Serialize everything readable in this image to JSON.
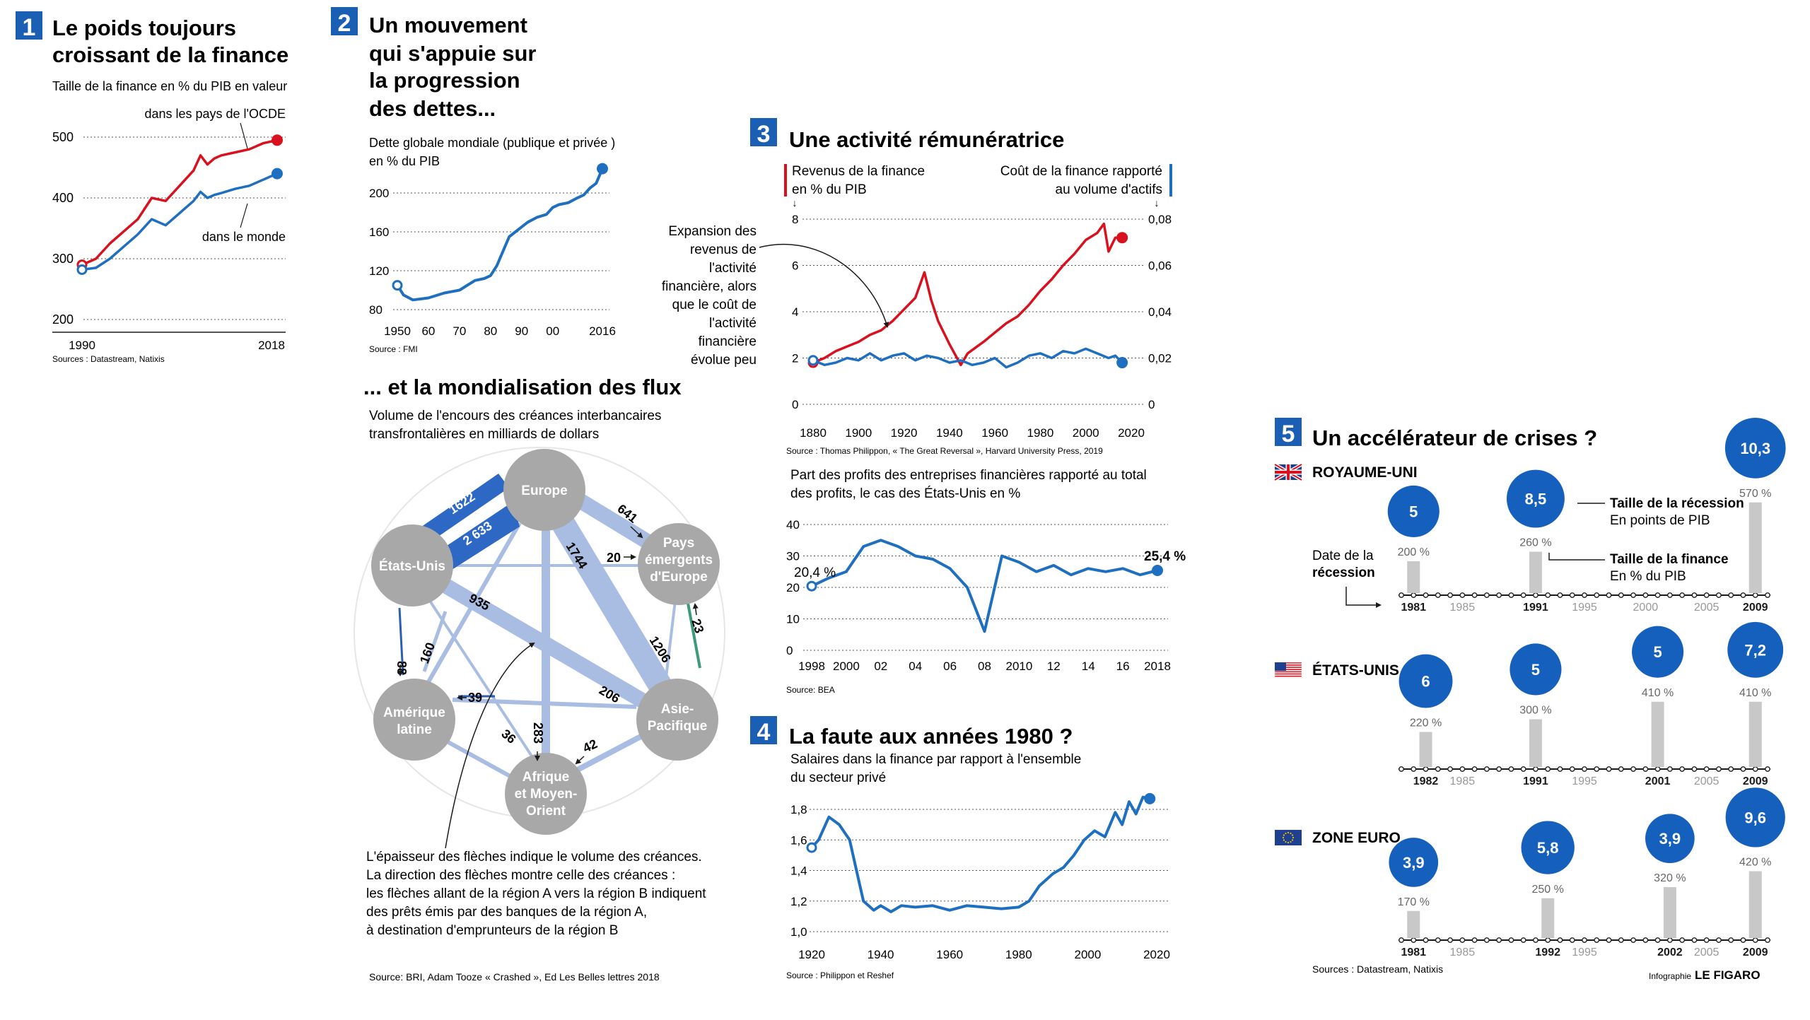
{
  "colors": {
    "blue": "#1f6fc0",
    "red": "#d9111e",
    "badge": "#1560bd",
    "panel_number_bg": "#1a5fb4",
    "network_node": "#a8a8a8",
    "network_edge": "#a9bde3",
    "network_edge_dark": "#2d68c4",
    "green": "#3a9a7a",
    "bar": "#c8c8c8",
    "grid": "#555555"
  },
  "panel1": {
    "number": "1",
    "title_line1": "Le poids toujours",
    "title_line2": "croissant de la finance",
    "subtitle": "Taille de la finance en % du PIB  en valeur",
    "label_ocde": "dans les pays de l'OCDE",
    "label_monde": "dans le monde",
    "source": "Sources : Datastream, Natixis"
  },
  "panel2": {
    "number": "2",
    "title_line1": "Un mouvement",
    "title_line2": "qui s'appuie sur",
    "title_line3": "la progression",
    "title_line4": "des dettes...",
    "subtitle_line1": "Dette globale mondiale (publique et privée )",
    "subtitle_line2": "en % du PIB",
    "source": "Source : FMI"
  },
  "network": {
    "title": "... et la mondialisation des flux",
    "subtitle_line1": "Volume de l'encours des créances interbancaires",
    "subtitle_line2": "transfrontalières en milliards de dollars",
    "nodes": {
      "europe": "Europe",
      "etats_unis": "États-Unis",
      "pays_emergents_1": "Pays",
      "pays_emergents_2": "émergents",
      "pays_emergents_3": "d'Europe",
      "amerique_1": "Amérique",
      "amerique_2": "latine",
      "asie_1": "Asie-",
      "asie_2": "Pacifique",
      "afrique_1": "Afrique",
      "afrique_2": "et Moyen-",
      "afrique_3": "Orient"
    },
    "flows": {
      "f1622": "1622",
      "f2633": "2 633",
      "f641": "641",
      "f20": "20",
      "f1744": "1744",
      "f935": "935",
      "f1206": "1206",
      "f23": "23",
      "f88": "88",
      "f160": "160",
      "f39": "39",
      "f206": "206",
      "f283": "283",
      "f36": "36",
      "f42": "42"
    },
    "note_line1": "L'épaisseur des flèches indique le volume des créances.",
    "note_line2": "La direction des flèches montre celle des créances :",
    "note_line3": "les flèches allant de la région A vers la région B indiquent",
    "note_line4": "des prêts émis par des banques de la région A,",
    "note_line5": "à destination d'emprunteurs de la région B",
    "source": "Source: BRI, Adam Tooze « Crashed », Ed Les Belles lettres 2018"
  },
  "panel3": {
    "number": "3",
    "title": "Une activité rémunératrice",
    "left_axis_line1": "Revenus de la finance",
    "left_axis_line2": "en % du PIB",
    "right_axis_line1": "Coût de la finance rapporté",
    "right_axis_line2": "au volume d'actifs",
    "annotation": [
      "Expansion des",
      "revenus de",
      "l'activité",
      "financière, alors",
      "que le coût de",
      "l'activité",
      "financière",
      "évolue peu"
    ],
    "source": "Source : Thomas Philippon, « The Great Reversal », Harvard University Press, 2019",
    "profits_title_line1": "Part des profits des entreprises financières rapporté au total",
    "profits_title_line2": "des profits, le cas des États-Unis en %",
    "profits_start_label": "20,4 %",
    "profits_end_label": "25,4 %",
    "profits_source": "Source: BEA"
  },
  "panel4": {
    "number": "4",
    "title": "La faute aux années 1980 ?",
    "subtitle_line1": "Salaires dans la finance par rapport à l'ensemble",
    "subtitle_line2": "du secteur privé",
    "source": "Source : Philippon et Reshef"
  },
  "panel5": {
    "number": "5",
    "title": "Un accélérateur de crises ?",
    "legend_badge": "Taille de la récession",
    "legend_badge_sub": "En points de PIB",
    "legend_bar": "Taille de la finance",
    "legend_bar_sub": "En % du PIB",
    "date_label_line1": "Date de la",
    "date_label_line2": "récession",
    "source": "Sources : Datastream, Natixis",
    "credit_small": "Infographie",
    "credit_brand": "LE FIGARO",
    "regions": [
      {
        "name": "ROYAUME-UNI",
        "flag": "uk-flag-icon",
        "ticks": [
          "1981",
          "1985",
          "1991",
          "1995",
          "2000",
          "2005",
          "2009"
        ],
        "crises": [
          {
            "year": "1981",
            "recession": "5",
            "finance": "200 %",
            "finance_pct": 200
          },
          {
            "year": "1991",
            "recession": "8,5",
            "finance": "260 %",
            "finance_pct": 260
          },
          {
            "year": "2009",
            "recession": "10,3",
            "finance": "570 %",
            "finance_pct": 570
          }
        ]
      },
      {
        "name": "ÉTATS-UNIS",
        "flag": "us-flag-icon",
        "ticks": [
          "1982",
          "1985",
          "1991",
          "1995",
          "2001",
          "2005",
          "2009"
        ],
        "crises": [
          {
            "year": "1982",
            "recession": "6",
            "finance": "220 %",
            "finance_pct": 220
          },
          {
            "year": "1991",
            "recession": "5",
            "finance": "300 %",
            "finance_pct": 300
          },
          {
            "year": "2001",
            "recession": "5",
            "finance": "410 %",
            "finance_pct": 410
          },
          {
            "year": "2009",
            "recession": "7,2",
            "finance": "410 %",
            "finance_pct": 410
          }
        ]
      },
      {
        "name": "ZONE EURO",
        "flag": "eu-flag-icon",
        "ticks": [
          "1981",
          "1985",
          "1992",
          "1995",
          "2002",
          "2005",
          "2009"
        ],
        "crises": [
          {
            "year": "1981",
            "recession": "3,9",
            "finance": "170 %",
            "finance_pct": 170
          },
          {
            "year": "1992",
            "recession": "5,8",
            "finance": "250 %",
            "finance_pct": 250
          },
          {
            "year": "2002",
            "recession": "3,9",
            "finance": "320 %",
            "finance_pct": 320
          },
          {
            "year": "2009",
            "recession": "9,6",
            "finance": "420 %",
            "finance_pct": 420
          }
        ]
      }
    ]
  },
  "chart_data": [
    {
      "id": "finance_size",
      "type": "line",
      "xlim": [
        1990,
        2018
      ],
      "ylim": [
        200,
        500
      ],
      "yticks": [
        200,
        300,
        400,
        500
      ],
      "xtick_labels": [
        "1990",
        "2018"
      ],
      "series": [
        {
          "name": "dans les pays de l'OCDE",
          "color_key": "red",
          "x": [
            1990,
            1992,
            1994,
            1996,
            1998,
            2000,
            2002,
            2004,
            2006,
            2007,
            2008,
            2009,
            2010,
            2012,
            2014,
            2016,
            2018
          ],
          "y": [
            290,
            300,
            325,
            345,
            365,
            400,
            395,
            420,
            445,
            470,
            455,
            465,
            470,
            475,
            480,
            490,
            495
          ]
        },
        {
          "name": "dans le monde",
          "color_key": "blue",
          "x": [
            1990,
            1992,
            1994,
            1996,
            1998,
            2000,
            2002,
            2004,
            2006,
            2007,
            2008,
            2009,
            2010,
            2012,
            2014,
            2016,
            2018
          ],
          "y": [
            282,
            285,
            300,
            320,
            340,
            365,
            355,
            375,
            395,
            410,
            400,
            405,
            408,
            415,
            420,
            430,
            440
          ]
        }
      ]
    },
    {
      "id": "global_debt",
      "type": "line",
      "xlim": [
        1950,
        2016
      ],
      "ylim": [
        80,
        200
      ],
      "yticks": [
        80,
        120,
        160,
        200
      ],
      "xtick_labels": [
        "1950",
        "60",
        "70",
        "80",
        "90",
        "00",
        "2016"
      ],
      "xtick_values": [
        1950,
        1960,
        1970,
        1980,
        1990,
        2000,
        2016
      ],
      "series": [
        {
          "name": "",
          "color_key": "blue",
          "x": [
            1950,
            1952,
            1955,
            1960,
            1965,
            1970,
            1975,
            1978,
            1980,
            1982,
            1984,
            1986,
            1988,
            1990,
            1992,
            1995,
            1998,
            2000,
            2002,
            2005,
            2008,
            2010,
            2012,
            2014,
            2016
          ],
          "y": [
            105,
            95,
            90,
            92,
            97,
            100,
            110,
            112,
            115,
            125,
            140,
            155,
            160,
            165,
            170,
            175,
            178,
            185,
            188,
            190,
            195,
            198,
            205,
            210,
            225
          ]
        }
      ]
    },
    {
      "id": "finance_income_cost",
      "type": "line",
      "xlim": [
        1880,
        2020
      ],
      "ylim": [
        0,
        8
      ],
      "yticks_left": [
        0,
        2,
        4,
        6,
        8
      ],
      "yticks_right": [
        "0",
        "0,02",
        "0,04",
        "0,06",
        "0,08"
      ],
      "xtick_values": [
        1880,
        1900,
        1920,
        1940,
        1960,
        1980,
        2000,
        2020
      ],
      "series": [
        {
          "name": "Revenus de la finance en % du PIB",
          "color_key": "red",
          "axis": "left",
          "x": [
            1880,
            1885,
            1890,
            1895,
            1900,
            1905,
            1910,
            1915,
            1920,
            1925,
            1929,
            1932,
            1935,
            1940,
            1945,
            1948,
            1955,
            1960,
            1965,
            1970,
            1975,
            1980,
            1985,
            1990,
            1995,
            2000,
            2005,
            2008,
            2010,
            2013,
            2016
          ],
          "y": [
            1.8,
            2.0,
            2.3,
            2.5,
            2.7,
            3.0,
            3.2,
            3.6,
            4.1,
            4.6,
            5.7,
            4.5,
            3.6,
            2.6,
            1.7,
            2.2,
            2.7,
            3.1,
            3.5,
            3.8,
            4.3,
            4.9,
            5.4,
            6.0,
            6.5,
            7.1,
            7.4,
            7.8,
            6.6,
            7.2,
            7.2
          ]
        },
        {
          "name": "Coût de la finance rapporté au volume d'actifs",
          "color_key": "blue",
          "axis": "right",
          "x": [
            1880,
            1885,
            1890,
            1895,
            1900,
            1905,
            1910,
            1915,
            1920,
            1925,
            1930,
            1935,
            1940,
            1945,
            1950,
            1955,
            1960,
            1965,
            1970,
            1975,
            1980,
            1985,
            1990,
            1995,
            2000,
            2005,
            2010,
            2013,
            2016
          ],
          "y": [
            0.019,
            0.017,
            0.018,
            0.02,
            0.019,
            0.022,
            0.019,
            0.021,
            0.022,
            0.019,
            0.021,
            0.02,
            0.018,
            0.019,
            0.017,
            0.018,
            0.02,
            0.016,
            0.018,
            0.021,
            0.022,
            0.02,
            0.023,
            0.022,
            0.024,
            0.022,
            0.02,
            0.021,
            0.018
          ]
        }
      ]
    },
    {
      "id": "financial_profits_share",
      "type": "line",
      "xlim": [
        1998,
        2018
      ],
      "ylim": [
        0,
        40
      ],
      "yticks": [
        0,
        10,
        20,
        30,
        40
      ],
      "xtick_labels": [
        "1998",
        "2000",
        "02",
        "04",
        "06",
        "08",
        "2010",
        "12",
        "14",
        "16",
        "2018"
      ],
      "xtick_values": [
        1998,
        2000,
        2002,
        2004,
        2006,
        2008,
        2010,
        2012,
        2014,
        2016,
        2018
      ],
      "series": [
        {
          "name": "",
          "color_key": "blue",
          "x": [
            1998,
            1999,
            2000,
            2001,
            2002,
            2003,
            2004,
            2005,
            2006,
            2007,
            2008,
            2009,
            2010,
            2011,
            2012,
            2013,
            2014,
            2015,
            2016,
            2017,
            2018
          ],
          "y": [
            20.4,
            23,
            25,
            33,
            35,
            33,
            30,
            29,
            26,
            20,
            6,
            30,
            28,
            25,
            27,
            24,
            26,
            25,
            26,
            24,
            25.4
          ]
        }
      ]
    },
    {
      "id": "finance_wages",
      "type": "line",
      "xlim": [
        1920,
        2020
      ],
      "ylim": [
        1.0,
        1.8
      ],
      "yticks": [
        "1,0",
        "1,2",
        "1,4",
        "1,6",
        "1,8"
      ],
      "ytick_values": [
        1.0,
        1.2,
        1.4,
        1.6,
        1.8
      ],
      "xtick_values": [
        1920,
        1940,
        1960,
        1980,
        2000,
        2020
      ],
      "series": [
        {
          "name": "",
          "color_key": "blue",
          "x": [
            1920,
            1922,
            1925,
            1928,
            1931,
            1933,
            1935,
            1938,
            1940,
            1943,
            1946,
            1950,
            1955,
            1960,
            1965,
            1970,
            1975,
            1980,
            1983,
            1986,
            1990,
            1993,
            1996,
            1999,
            2002,
            2005,
            2008,
            2010,
            2012,
            2014,
            2016,
            2018
          ],
          "y": [
            1.55,
            1.6,
            1.75,
            1.7,
            1.6,
            1.4,
            1.2,
            1.14,
            1.17,
            1.13,
            1.17,
            1.16,
            1.17,
            1.14,
            1.17,
            1.16,
            1.15,
            1.16,
            1.2,
            1.3,
            1.38,
            1.42,
            1.5,
            1.6,
            1.66,
            1.62,
            1.78,
            1.7,
            1.85,
            1.77,
            1.88,
            1.87
          ]
        }
      ]
    },
    {
      "id": "crises_uk",
      "type": "bar",
      "categories": [
        "1981",
        "1991",
        "2009"
      ],
      "series": [
        {
          "name": "Taille de la récession",
          "values": [
            5,
            8.5,
            10.3
          ]
        },
        {
          "name": "Taille de la finance",
          "values": [
            200,
            260,
            570
          ]
        }
      ]
    },
    {
      "id": "crises_us",
      "type": "bar",
      "categories": [
        "1982",
        "1991",
        "2001",
        "2009"
      ],
      "series": [
        {
          "name": "Taille de la récession",
          "values": [
            6,
            5,
            5,
            7.2
          ]
        },
        {
          "name": "Taille de la finance",
          "values": [
            220,
            300,
            410,
            410
          ]
        }
      ]
    },
    {
      "id": "crises_eurozone",
      "type": "bar",
      "categories": [
        "1981",
        "1992",
        "2002",
        "2009"
      ],
      "series": [
        {
          "name": "Taille de la récession",
          "values": [
            3.9,
            5.8,
            3.9,
            9.6
          ]
        },
        {
          "name": "Taille de la finance",
          "values": [
            170,
            250,
            320,
            420
          ]
        }
      ]
    }
  ]
}
